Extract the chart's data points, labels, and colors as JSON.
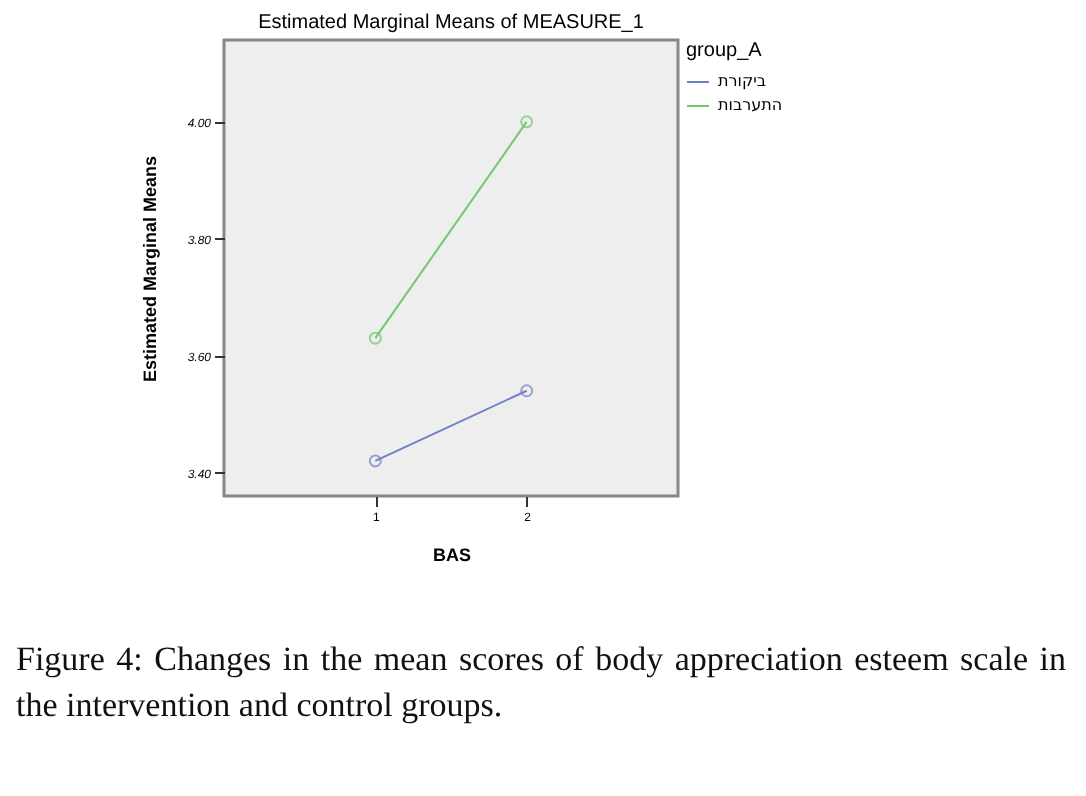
{
  "chart_data": {
    "type": "line",
    "title": "Estimated Marginal Means of MEASURE_1",
    "xlabel": "BAS",
    "ylabel": "Estimated Marginal Means",
    "legend_title": "group_A",
    "categories": [
      "1",
      "2"
    ],
    "series": [
      {
        "name": "ביקורת",
        "color": "#7080c8",
        "values": [
          3.42,
          3.54
        ]
      },
      {
        "name": "התערבות",
        "color": "#70c870",
        "values": [
          3.63,
          4.0
        ]
      }
    ],
    "ylim": [
      3.36,
      4.14
    ],
    "yticks": [
      {
        "value": 3.4,
        "label": "3.40"
      },
      {
        "value": 3.6,
        "label": "3.60"
      },
      {
        "value": 3.8,
        "label": "3.80"
      },
      {
        "value": 4.0,
        "label": "4.00"
      }
    ],
    "grid": false,
    "legend": "top right",
    "marker": "circle",
    "line_style": "solid",
    "annotations": [
      "Figure 4: Changes in the mean scores of body appreciation esteem scale in the intervention and control groups."
    ]
  }
}
